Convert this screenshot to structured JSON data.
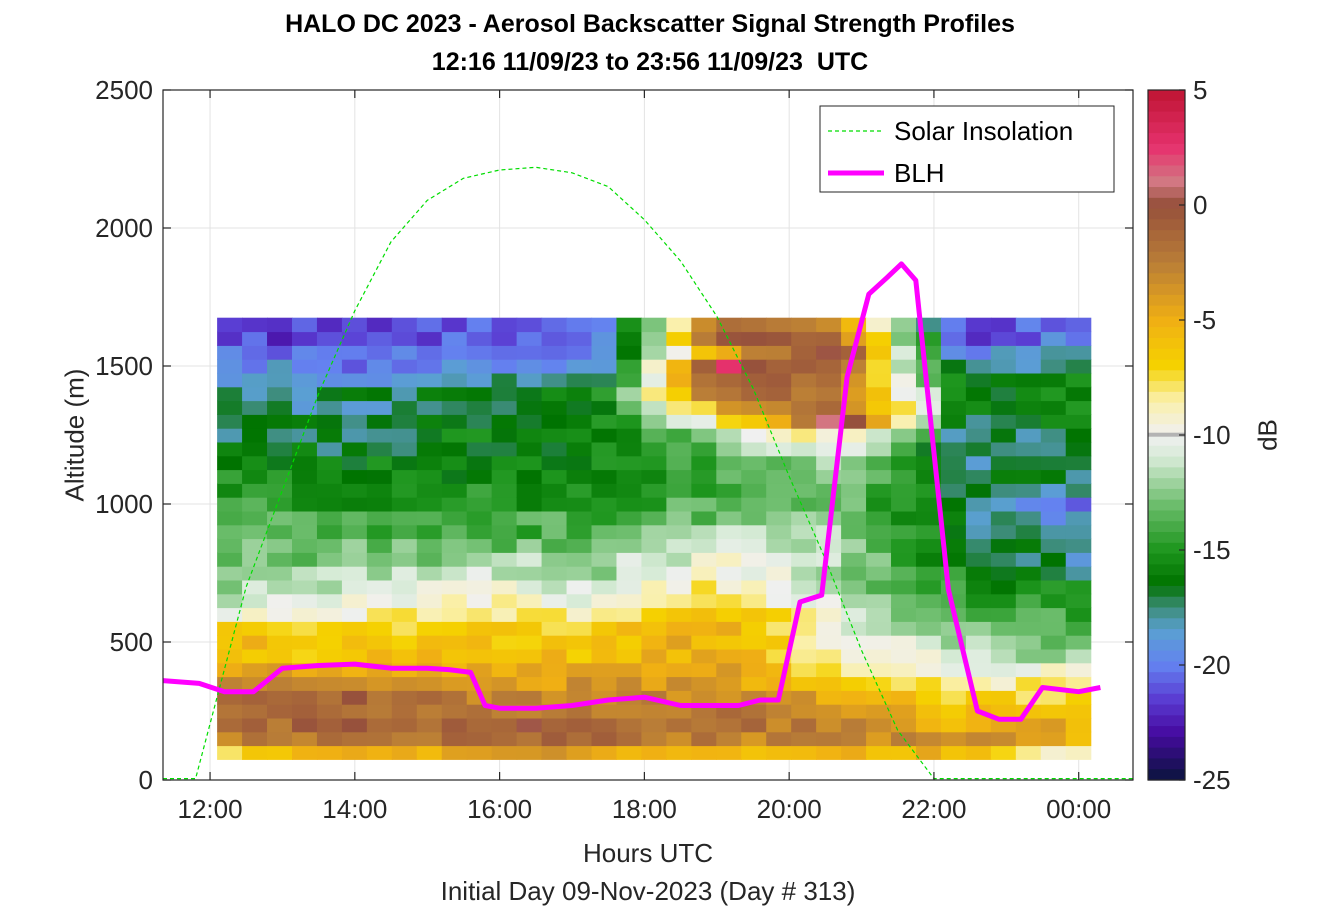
{
  "chart_data": {
    "type": "heatmap",
    "title": "HALO DC 2023 - Aerosol Backscatter Signal Strength Profiles",
    "subtitle": "12:16 11/09/23 to 23:56 11/09/23  UTC",
    "xlabel": "Hours UTC",
    "x_sublabel": "Initial Day 09-Nov-2023 (Day # 313)",
    "ylabel": "Altitude (m)",
    "colorbar_label": "dB",
    "xlim": [
      11.35,
      24.75
    ],
    "ylim": [
      0,
      2500
    ],
    "x_ticks": [
      12,
      14,
      16,
      18,
      20,
      22,
      24
    ],
    "x_tick_labels": [
      "12:00",
      "14:00",
      "16:00",
      "18:00",
      "20:00",
      "22:00",
      "00:00"
    ],
    "y_ticks": [
      0,
      500,
      1000,
      1500,
      2000,
      2500
    ],
    "y_tick_labels": [
      "0",
      "500",
      "1000",
      "1500",
      "2000",
      "2500"
    ],
    "colorbar_range": [
      -25,
      5
    ],
    "colorbar_ticks": [
      5,
      0,
      -5,
      -10,
      -15,
      -20,
      -25
    ],
    "colorbar_tick_labels": [
      "5",
      "0",
      "-5",
      "-10",
      "-15",
      "-20",
      "-25"
    ],
    "grid": true,
    "legend_position": "top-right",
    "legend": [
      "Solar Insolation",
      "BLH"
    ],
    "heatmap": {
      "time_start": 12.27,
      "time_step": 0.3448,
      "alt_start": 100,
      "alt_step": 50,
      "columns": [
        {
          "t": 12.27,
          "v": [
            -8,
            -3,
            -2,
            -2,
            -2,
            -3,
            -5,
            -6,
            -6,
            -7,
            -10,
            -11,
            -12,
            -12,
            -13,
            -13,
            -14,
            -14,
            -14,
            -15,
            -15,
            -16,
            -16,
            -17,
            -17,
            -18,
            -18,
            -19,
            -19,
            -20,
            -21,
            -21
          ]
        },
        {
          "t": 13.96,
          "v": [
            -5,
            -2,
            -1,
            -1,
            -1,
            -3,
            -5,
            -6,
            -6,
            -7,
            -9,
            -10,
            -11,
            -12,
            -13,
            -13,
            -14,
            -14,
            -15,
            -15,
            -16,
            -16,
            -17,
            -17,
            -17,
            -18,
            -17,
            -19,
            -20,
            -21,
            -22,
            -22
          ]
        },
        {
          "t": 15.65,
          "v": [
            -5,
            -2,
            -1,
            -2,
            -3,
            -4,
            -5,
            -6,
            -6,
            -7,
            -8,
            -9,
            -10,
            -11,
            -12,
            -13,
            -14,
            -14,
            -15,
            -15,
            -16,
            -16,
            -16,
            -16,
            -17,
            -17,
            -17,
            -18,
            -19,
            -20,
            -20,
            -21
          ]
        },
        {
          "t": 17.34,
          "v": [
            -4,
            -1,
            -1,
            -2,
            -3,
            -4,
            -5,
            -6,
            -6,
            -7,
            -9,
            -10,
            -11,
            -12,
            -12,
            -13,
            -14,
            -14,
            -15,
            -15,
            -16,
            -16,
            -16,
            -16,
            -16,
            -17,
            -16,
            -18,
            -19,
            -20,
            -21,
            -21
          ]
        },
        {
          "t": 19.03,
          "v": [
            -6,
            -3,
            -2,
            -2,
            -3,
            -4,
            -4,
            -5,
            -5,
            -5,
            -6,
            -7,
            -8,
            -9,
            -10,
            -11,
            -12,
            -13,
            -13,
            -14,
            -14,
            -14,
            -13,
            -12,
            -9,
            -5,
            -1,
            0,
            2,
            -4,
            -1,
            -2
          ]
        },
        {
          "t": 20.72,
          "v": [
            -5,
            -3,
            -3,
            -4,
            -5,
            -6,
            -8,
            -9,
            -9,
            -10,
            -10,
            -11,
            -12,
            -12,
            -12,
            -12,
            -12,
            -13,
            -13,
            -13,
            -12,
            -11,
            -10,
            -8,
            1,
            -1,
            -2,
            -3,
            -2,
            0,
            -2,
            -4
          ]
        },
        {
          "t": 22.41,
          "v": [
            -6,
            -4,
            -5,
            -6,
            -7,
            -8,
            -10,
            -11,
            -12,
            -13,
            -14,
            -15,
            -15,
            -15,
            -16,
            -16,
            -17,
            -17,
            -17,
            -17,
            -17,
            -18,
            -18,
            -18,
            -17,
            -16,
            -16,
            -17,
            -19,
            -20,
            -21,
            -22
          ]
        },
        {
          "t": 23.97,
          "v": [
            -10,
            -5,
            -5,
            -6,
            -8,
            -9,
            -10,
            -12,
            -13,
            -14,
            -14,
            -15,
            -16,
            -17,
            -18,
            -18,
            -19,
            -19,
            -20,
            -18,
            -17,
            -17,
            -17,
            -17,
            -16,
            -16,
            -16,
            -16,
            -17,
            -18,
            -20,
            -20
          ]
        }
      ]
    },
    "series": [
      {
        "name": "BLH",
        "color": "#ff00ff",
        "x": [
          11.35,
          11.85,
          12.2,
          12.6,
          13.0,
          13.5,
          14.0,
          14.5,
          15.0,
          15.3,
          15.6,
          15.8,
          16.0,
          16.5,
          17.0,
          17.5,
          18.0,
          18.5,
          19.0,
          19.3,
          19.6,
          19.85,
          20.15,
          20.45,
          20.8,
          21.1,
          21.35,
          21.55,
          21.75,
          22.2,
          22.6,
          22.9,
          23.2,
          23.5,
          24.0,
          24.3
        ],
        "y": [
          360,
          350,
          320,
          320,
          405,
          415,
          420,
          405,
          405,
          400,
          390,
          270,
          260,
          260,
          270,
          290,
          300,
          270,
          270,
          270,
          290,
          290,
          645,
          670,
          1460,
          1760,
          1820,
          1870,
          1810,
          690,
          250,
          220,
          220,
          335,
          320,
          335
        ]
      },
      {
        "name": "Solar Insolation",
        "color": "#00dd00",
        "style": "dashed",
        "x": [
          11.35,
          11.8,
          12.5,
          13.0,
          13.5,
          14.0,
          14.5,
          15.0,
          15.5,
          16.0,
          16.5,
          17.0,
          17.5,
          18.0,
          18.5,
          19.0,
          19.5,
          20.0,
          20.5,
          21.0,
          21.5,
          22.0,
          22.2,
          24.75
        ],
        "y": [
          5,
          5,
          700,
          1050,
          1400,
          1700,
          1950,
          2100,
          2180,
          2210,
          2220,
          2200,
          2150,
          2030,
          1880,
          1680,
          1420,
          1100,
          800,
          470,
          180,
          5,
          5,
          5
        ]
      }
    ]
  }
}
